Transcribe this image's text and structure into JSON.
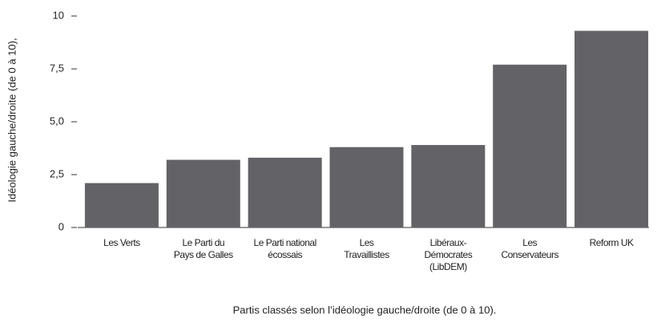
{
  "chart_data": {
    "type": "bar",
    "ylabel": "Idéologie gauche/droite (de 0 à 10),",
    "xlabel": "Partis classés selon l’idéologie gauche/droite (de 0 à 10).",
    "categories": [
      [
        "Les Verts"
      ],
      [
        "Le Parti du",
        "Pays de Galles"
      ],
      [
        "Le Parti national",
        "écossais"
      ],
      [
        "Les",
        "Travaillistes"
      ],
      [
        "Libéraux-",
        "Démocrates",
        "(LibDEM)"
      ],
      [
        "Les",
        "Conservateurs"
      ],
      [
        "Reform UK"
      ]
    ],
    "values": [
      2.1,
      3.2,
      3.3,
      3.8,
      3.9,
      7.7,
      9.3
    ],
    "color": "#636266",
    "ylim": [
      0,
      10
    ],
    "yticks": [
      0,
      {
        "value": 2.5,
        "label": "2,5"
      },
      {
        "value": 5,
        "label": "5,0"
      },
      {
        "value": 7.5,
        "label": "7,5"
      },
      10
    ],
    "grid": false
  }
}
